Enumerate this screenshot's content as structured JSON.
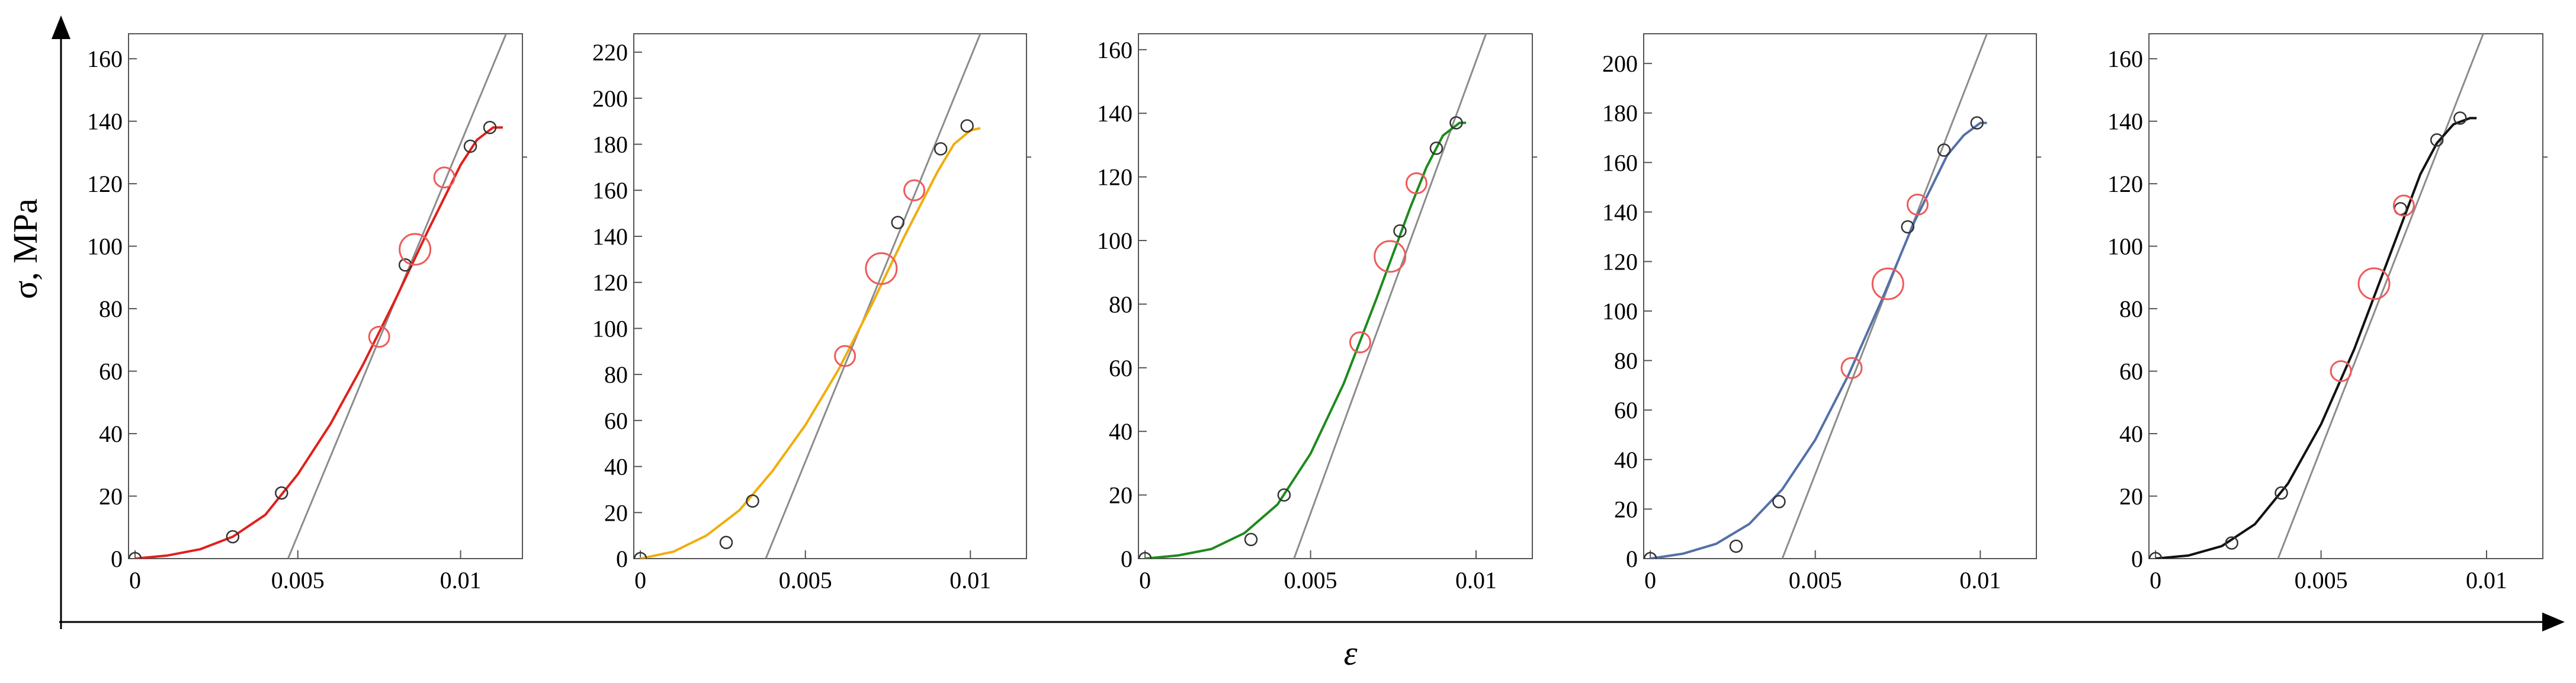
{
  "figure": {
    "x_axis_label": "ε",
    "y_axis_label": "σ, MPa",
    "colors": {
      "axis": "#000000",
      "frame": "#555555",
      "tangent": "#8c8c8c",
      "marker_small": "#333333",
      "marker_large": "#ee5a5a"
    }
  },
  "chart_data": [
    {
      "type": "line",
      "color": "#e0201b",
      "xlim": [
        -0.0002,
        0.0119
      ],
      "ylim": [
        0,
        168
      ],
      "xticks": [
        0,
        0.005,
        0.01
      ],
      "xtick_labels": [
        "0",
        "0.005",
        "0.01"
      ],
      "yticks": [
        0,
        20,
        40,
        60,
        80,
        100,
        120,
        140,
        160
      ],
      "ytick_labels": [
        "0",
        "20",
        "40",
        "60",
        "80",
        "100",
        "120",
        "140",
        "160"
      ],
      "curve": {
        "x": [
          0,
          0.001,
          0.002,
          0.003,
          0.004,
          0.005,
          0.006,
          0.007,
          0.008,
          0.009,
          0.01,
          0.0105,
          0.011,
          0.0113
        ],
        "y": [
          0,
          1,
          3,
          7,
          14,
          27,
          43,
          62,
          83,
          105,
          126,
          134,
          138,
          138
        ]
      },
      "tangent": {
        "x": [
          0.0047,
          0.0114
        ],
        "y": [
          0,
          168
        ]
      },
      "small_markers": {
        "x": [
          0,
          0.003,
          0.0045,
          0.0083,
          0.0103,
          0.0109
        ],
        "y": [
          0,
          7,
          21,
          94,
          132,
          138
        ]
      },
      "large_markers": {
        "x": [
          0.0075,
          0.0086,
          0.0095
        ],
        "y": [
          71,
          99,
          122
        ],
        "sizes": [
          "m",
          "l",
          "m"
        ]
      }
    },
    {
      "type": "line",
      "color": "#f0ad0c",
      "xlim": [
        -0.0002,
        0.0117
      ],
      "ylim": [
        0,
        228
      ],
      "xticks": [
        0,
        0.005,
        0.01
      ],
      "xtick_labels": [
        "0",
        "0.005",
        "0.01"
      ],
      "yticks": [
        0,
        20,
        40,
        60,
        80,
        100,
        120,
        140,
        160,
        180,
        200,
        220
      ],
      "ytick_labels": [
        "0",
        "20",
        "40",
        "60",
        "80",
        "100",
        "120",
        "140",
        "160",
        "180",
        "200",
        "220"
      ],
      "curve": {
        "x": [
          0,
          0.001,
          0.002,
          0.003,
          0.004,
          0.005,
          0.006,
          0.007,
          0.008,
          0.009,
          0.0095,
          0.01,
          0.0103
        ],
        "y": [
          0,
          3,
          10,
          21,
          38,
          58,
          82,
          110,
          140,
          168,
          180,
          186,
          187
        ]
      },
      "tangent": {
        "x": [
          0.0038,
          0.0103
        ],
        "y": [
          0,
          228
        ]
      },
      "small_markers": {
        "x": [
          0,
          0.0026,
          0.0034,
          0.0078,
          0.0091,
          0.0099
        ],
        "y": [
          0,
          7,
          25,
          146,
          178,
          188
        ]
      },
      "large_markers": {
        "x": [
          0.0062,
          0.0073,
          0.0083
        ],
        "y": [
          88,
          126,
          160
        ],
        "sizes": [
          "m",
          "l",
          "m"
        ]
      }
    },
    {
      "type": "line",
      "color": "#1e8a1e",
      "xlim": [
        -0.0002,
        0.0117
      ],
      "ylim": [
        0,
        165
      ],
      "xticks": [
        0,
        0.005,
        0.01
      ],
      "xtick_labels": [
        "0",
        "0.005",
        "0.01"
      ],
      "yticks": [
        0,
        20,
        40,
        60,
        80,
        100,
        120,
        140,
        160
      ],
      "ytick_labels": [
        "0",
        "20",
        "40",
        "60",
        "80",
        "100",
        "120",
        "140",
        "160"
      ],
      "curve": {
        "x": [
          0,
          0.001,
          0.002,
          0.003,
          0.004,
          0.005,
          0.006,
          0.007,
          0.008,
          0.0085,
          0.009,
          0.0095,
          0.0097
        ],
        "y": [
          0,
          1,
          3,
          8,
          17,
          33,
          55,
          82,
          110,
          123,
          133,
          137,
          137
        ]
      },
      "tangent": {
        "x": [
          0.0045,
          0.0103
        ],
        "y": [
          0,
          165
        ]
      },
      "small_markers": {
        "x": [
          0,
          0.0032,
          0.0042,
          0.0077,
          0.0088,
          0.0094
        ],
        "y": [
          0,
          6,
          20,
          103,
          129,
          137
        ]
      },
      "large_markers": {
        "x": [
          0.0065,
          0.0074,
          0.0082
        ],
        "y": [
          68,
          95,
          118
        ],
        "sizes": [
          "m",
          "l",
          "m"
        ]
      }
    },
    {
      "type": "line",
      "color": "#5470a8",
      "xlim": [
        -0.0002,
        0.0117
      ],
      "ylim": [
        0,
        212
      ],
      "xticks": [
        0,
        0.005,
        0.01
      ],
      "xtick_labels": [
        "0",
        "0.005",
        "0.01"
      ],
      "yticks": [
        0,
        20,
        40,
        60,
        80,
        100,
        120,
        140,
        160,
        180,
        200
      ],
      "ytick_labels": [
        "0",
        "20",
        "40",
        "60",
        "80",
        "100",
        "120",
        "140",
        "160",
        "180",
        "200"
      ],
      "curve": {
        "x": [
          0,
          0.001,
          0.002,
          0.003,
          0.004,
          0.005,
          0.006,
          0.007,
          0.008,
          0.009,
          0.0095,
          0.01,
          0.0102
        ],
        "y": [
          0,
          2,
          6,
          14,
          28,
          48,
          74,
          104,
          136,
          163,
          171,
          176,
          176
        ]
      },
      "tangent": {
        "x": [
          0.004,
          0.0102
        ],
        "y": [
          0,
          212
        ]
      },
      "small_markers": {
        "x": [
          0,
          0.0026,
          0.0039,
          0.0078,
          0.0089,
          0.0099
        ],
        "y": [
          0,
          5,
          23,
          134,
          165,
          176
        ]
      },
      "large_markers": {
        "x": [
          0.0061,
          0.0072,
          0.0081
        ],
        "y": [
          77,
          111,
          143
        ],
        "sizes": [
          "m",
          "l",
          "m"
        ]
      }
    },
    {
      "type": "line",
      "color": "#111111",
      "xlim": [
        -0.0002,
        0.0117
      ],
      "ylim": [
        0,
        168
      ],
      "xticks": [
        0,
        0.005,
        0.01
      ],
      "xtick_labels": [
        "0",
        "0.005",
        "0.01"
      ],
      "yticks": [
        0,
        20,
        40,
        60,
        80,
        100,
        120,
        140,
        160
      ],
      "ytick_labels": [
        "0",
        "20",
        "40",
        "60",
        "80",
        "100",
        "120",
        "140",
        "160"
      ],
      "curve": {
        "x": [
          0,
          0.001,
          0.002,
          0.003,
          0.004,
          0.005,
          0.006,
          0.007,
          0.008,
          0.0085,
          0.009,
          0.0095,
          0.0097
        ],
        "y": [
          0,
          1,
          4,
          11,
          24,
          43,
          67,
          95,
          123,
          133,
          139,
          141,
          141
        ]
      },
      "tangent": {
        "x": [
          0.0037,
          0.0099
        ],
        "y": [
          0,
          168
        ]
      },
      "small_markers": {
        "x": [
          0,
          0.0023,
          0.0038,
          0.0074,
          0.0085,
          0.0092
        ],
        "y": [
          0,
          5,
          21,
          112,
          134,
          141
        ]
      },
      "large_markers": {
        "x": [
          0.0056,
          0.0066,
          0.0075
        ],
        "y": [
          60,
          88,
          113
        ],
        "sizes": [
          "m",
          "l",
          "m"
        ]
      }
    }
  ]
}
